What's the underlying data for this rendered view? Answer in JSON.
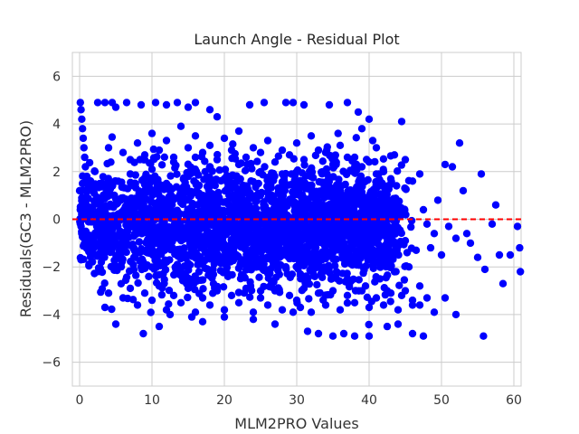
{
  "chart_data": {
    "type": "scatter",
    "title": "Launch Angle - Residual Plot",
    "xlabel": "MLM2PRO Values",
    "ylabel": "Residuals(GC3 - MLM2PRO)",
    "xlim": [
      -1,
      61
    ],
    "ylim": [
      -7,
      7
    ],
    "xticks": [
      0,
      10,
      20,
      30,
      40,
      50,
      60
    ],
    "yticks": [
      -6,
      -4,
      -2,
      0,
      2,
      4,
      6
    ],
    "grid": true,
    "point_color": "#0000ff",
    "reference_line": {
      "y": 0,
      "color": "#ff0000",
      "style": "dashed"
    },
    "series": [
      {
        "points": [
          [
            0.0,
            1.2
          ],
          [
            0.1,
            0.4
          ],
          [
            0.2,
            -0.3
          ],
          [
            0.3,
            0.9
          ],
          [
            0.4,
            1.5
          ],
          [
            0.5,
            0.2
          ],
          [
            0.3,
            -0.6
          ],
          [
            0.1,
            4.9
          ],
          [
            0.2,
            4.6
          ],
          [
            0.3,
            4.2
          ],
          [
            0.4,
            3.8
          ],
          [
            0.5,
            3.4
          ],
          [
            0.6,
            3.0
          ],
          [
            0.7,
            2.6
          ],
          [
            0.8,
            2.2
          ],
          [
            1.0,
            1.8
          ],
          [
            1.5,
            -0.8
          ],
          [
            2.0,
            -1.2
          ],
          [
            2.5,
            -1.5
          ],
          [
            3.0,
            -1.8
          ],
          [
            2.5,
            4.9
          ],
          [
            3.5,
            4.9
          ],
          [
            4.5,
            4.9
          ],
          [
            5.0,
            4.7
          ],
          [
            6.5,
            4.9
          ],
          [
            8.5,
            4.8
          ],
          [
            10.5,
            4.9
          ],
          [
            12.0,
            4.8
          ],
          [
            13.5,
            4.9
          ],
          [
            15.0,
            4.7
          ],
          [
            16.0,
            4.9
          ],
          [
            18.0,
            4.6
          ],
          [
            19.0,
            4.3
          ],
          [
            23.5,
            4.8
          ],
          [
            25.5,
            4.9
          ],
          [
            28.5,
            4.9
          ],
          [
            29.5,
            4.9
          ],
          [
            31.0,
            4.8
          ],
          [
            34.5,
            4.8
          ],
          [
            37.0,
            4.9
          ],
          [
            38.5,
            4.5
          ],
          [
            39.0,
            3.8
          ],
          [
            40.0,
            4.2
          ],
          [
            40.5,
            3.3
          ],
          [
            41.0,
            3.0
          ],
          [
            44.5,
            4.1
          ],
          [
            43.5,
            2.7
          ],
          [
            45.0,
            2.5
          ],
          [
            46.0,
            1.6
          ],
          [
            47.0,
            1.9
          ],
          [
            47.5,
            0.4
          ],
          [
            48.0,
            -0.2
          ],
          [
            48.5,
            -1.2
          ],
          [
            49.0,
            -0.6
          ],
          [
            49.5,
            0.8
          ],
          [
            50.0,
            -1.5
          ],
          [
            50.5,
            2.3
          ],
          [
            51.0,
            -0.3
          ],
          [
            51.5,
            2.2
          ],
          [
            52.0,
            -0.8
          ],
          [
            52.5,
            3.2
          ],
          [
            53.0,
            1.2
          ],
          [
            53.5,
            -0.6
          ],
          [
            54.0,
            -1.0
          ],
          [
            55.0,
            -1.6
          ],
          [
            55.5,
            1.9
          ],
          [
            56.0,
            -2.1
          ],
          [
            57.0,
            -0.2
          ],
          [
            57.5,
            0.6
          ],
          [
            58.0,
            -1.5
          ],
          [
            58.5,
            -2.7
          ],
          [
            59.5,
            -1.5
          ],
          [
            60.5,
            -0.3
          ],
          [
            60.8,
            -1.2
          ],
          [
            60.9,
            -2.2
          ],
          [
            55.8,
            -4.9
          ],
          [
            52.0,
            -4.0
          ],
          [
            50.5,
            -3.3
          ],
          [
            49.0,
            -3.9
          ],
          [
            47.5,
            -4.9
          ],
          [
            46.0,
            -4.8
          ],
          [
            44.0,
            -4.4
          ],
          [
            42.5,
            -4.5
          ],
          [
            40.0,
            -4.9
          ],
          [
            38.0,
            -4.9
          ],
          [
            36.5,
            -4.8
          ],
          [
            35.0,
            -4.9
          ],
          [
            33.0,
            -4.8
          ],
          [
            31.5,
            -4.7
          ],
          [
            8.8,
            -4.8
          ],
          [
            5.0,
            -4.4
          ],
          [
            3.5,
            -3.7
          ],
          [
            12.5,
            -4.0
          ],
          [
            15.5,
            -4.1
          ],
          [
            17.0,
            -4.3
          ],
          [
            20.0,
            -4.1
          ],
          [
            24.0,
            -4.2
          ],
          [
            27.0,
            -4.4
          ],
          [
            29.5,
            -3.9
          ],
          [
            11.0,
            -4.5
          ],
          [
            1.5,
            0.5
          ],
          [
            2.0,
            1.1
          ],
          [
            2.5,
            -0.4
          ],
          [
            3.0,
            0.8
          ],
          [
            3.5,
            -1.1
          ],
          [
            4.0,
            1.3
          ],
          [
            4.5,
            -0.7
          ],
          [
            5.0,
            1.6
          ],
          [
            5.5,
            -1.3
          ],
          [
            6.0,
            0.9
          ],
          [
            6.5,
            -0.5
          ],
          [
            7.0,
            1.9
          ],
          [
            7.5,
            -1.6
          ],
          [
            8.0,
            0.6
          ],
          [
            8.5,
            -2.0
          ],
          [
            9.0,
            1.2
          ],
          [
            9.5,
            -0.9
          ],
          [
            10.0,
            2.1
          ],
          [
            10.5,
            -1.7
          ],
          [
            11.0,
            0.3
          ],
          [
            11.5,
            -2.3
          ],
          [
            12.0,
            1.5
          ],
          [
            12.5,
            -0.8
          ],
          [
            13.0,
            2.4
          ],
          [
            13.5,
            -1.9
          ],
          [
            14.0,
            0.7
          ],
          [
            14.5,
            -2.5
          ],
          [
            15.0,
            1.8
          ],
          [
            15.5,
            -0.4
          ],
          [
            16.0,
            2.6
          ],
          [
            16.5,
            -2.2
          ],
          [
            17.0,
            1.0
          ],
          [
            17.5,
            -1.4
          ],
          [
            18.0,
            2.2
          ],
          [
            18.5,
            -2.7
          ],
          [
            19.0,
            0.5
          ],
          [
            19.5,
            -1.0
          ],
          [
            20.0,
            1.7
          ],
          [
            20.5,
            -2.4
          ],
          [
            21.0,
            0.9
          ],
          [
            21.5,
            -1.6
          ],
          [
            22.0,
            2.3
          ],
          [
            22.5,
            -0.6
          ],
          [
            23.0,
            1.4
          ],
          [
            23.5,
            -2.1
          ],
          [
            24.0,
            0.4
          ],
          [
            24.5,
            -1.8
          ],
          [
            25.0,
            2.0
          ],
          [
            25.5,
            -0.9
          ],
          [
            26.0,
            1.1
          ],
          [
            26.5,
            -2.6
          ],
          [
            27.0,
            0.6
          ],
          [
            27.5,
            -1.3
          ],
          [
            28.0,
            1.9
          ],
          [
            28.5,
            -2.0
          ],
          [
            29.0,
            0.8
          ],
          [
            29.5,
            -1.5
          ],
          [
            30.0,
            1.6
          ],
          [
            30.5,
            -2.3
          ],
          [
            31.0,
            0.2
          ],
          [
            31.5,
            -1.2
          ],
          [
            32.0,
            1.3
          ],
          [
            32.5,
            -2.4
          ],
          [
            33.0,
            0.7
          ],
          [
            33.5,
            -1.7
          ],
          [
            34.0,
            1.5
          ],
          [
            34.5,
            -0.8
          ],
          [
            35.0,
            0.9
          ],
          [
            35.5,
            -2.2
          ],
          [
            36.0,
            1.2
          ],
          [
            36.5,
            -1.4
          ],
          [
            37.0,
            0.4
          ],
          [
            37.5,
            -2.6
          ],
          [
            38.0,
            1.0
          ],
          [
            38.5,
            -1.9
          ],
          [
            39.0,
            0.6
          ],
          [
            39.5,
            -2.8
          ],
          [
            40.0,
            0.8
          ],
          [
            40.5,
            -1.6
          ],
          [
            41.0,
            0.3
          ],
          [
            41.5,
            -2.5
          ],
          [
            42.0,
            0.5
          ],
          [
            42.5,
            -3.0
          ],
          [
            43.0,
            -0.4
          ],
          [
            43.5,
            -2.2
          ],
          [
            44.0,
            0.2
          ],
          [
            44.5,
            -3.2
          ],
          [
            45.0,
            -0.9
          ],
          [
            45.5,
            -2.0
          ],
          [
            46.0,
            -3.4
          ],
          [
            46.5,
            -1.3
          ],
          [
            47.0,
            -2.8
          ],
          [
            4.0,
            3.0
          ],
          [
            6.0,
            2.8
          ],
          [
            8.0,
            3.2
          ],
          [
            10.0,
            3.6
          ],
          [
            12.0,
            3.3
          ],
          [
            14.0,
            3.9
          ],
          [
            16.0,
            3.5
          ],
          [
            18.0,
            3.1
          ],
          [
            20.0,
            3.4
          ],
          [
            22.0,
            3.7
          ],
          [
            24.0,
            3.0
          ],
          [
            26.0,
            3.3
          ],
          [
            28.0,
            2.9
          ],
          [
            30.0,
            3.2
          ],
          [
            32.0,
            3.5
          ],
          [
            34.0,
            2.8
          ],
          [
            36.0,
            3.1
          ],
          [
            38.0,
            2.6
          ],
          [
            40.0,
            2.4
          ],
          [
            42.0,
            2.0
          ],
          [
            4.0,
            -3.1
          ],
          [
            6.0,
            -3.3
          ],
          [
            8.0,
            -3.6
          ],
          [
            10.0,
            -3.4
          ],
          [
            12.0,
            -3.8
          ],
          [
            14.0,
            -3.5
          ],
          [
            16.0,
            -3.9
          ],
          [
            18.0,
            -3.6
          ],
          [
            20.0,
            -3.8
          ],
          [
            22.0,
            -3.5
          ],
          [
            24.0,
            -3.9
          ],
          [
            26.0,
            -3.6
          ],
          [
            28.0,
            -3.8
          ],
          [
            30.0,
            -3.4
          ],
          [
            32.0,
            -3.9
          ],
          [
            34.0,
            -3.6
          ],
          [
            36.0,
            -3.8
          ],
          [
            38.0,
            -3.5
          ],
          [
            40.0,
            -3.7
          ],
          [
            42.0,
            -3.6
          ],
          [
            44.0,
            -3.8
          ],
          [
            46.0,
            -3.6
          ],
          [
            48.0,
            -3.3
          ],
          [
            7.0,
            2.5
          ],
          [
            9.0,
            2.7
          ],
          [
            11.0,
            2.9
          ],
          [
            13.0,
            2.6
          ],
          [
            15.0,
            3.0
          ],
          [
            17.0,
            2.8
          ],
          [
            19.0,
            2.5
          ],
          [
            21.0,
            2.9
          ],
          [
            23.0,
            2.6
          ],
          [
            25.0,
            2.8
          ],
          [
            27.0,
            2.4
          ],
          [
            29.0,
            2.7
          ],
          [
            31.0,
            2.5
          ],
          [
            33.0,
            2.9
          ],
          [
            35.0,
            2.3
          ],
          [
            37.0,
            2.6
          ],
          [
            39.0,
            2.2
          ],
          [
            41.0,
            1.9
          ],
          [
            43.0,
            1.7
          ],
          [
            7.0,
            -2.9
          ],
          [
            9.0,
            -3.1
          ],
          [
            11.0,
            -2.8
          ],
          [
            13.0,
            -3.2
          ],
          [
            15.0,
            -2.9
          ],
          [
            17.0,
            -3.3
          ],
          [
            19.0,
            -3.0
          ],
          [
            21.0,
            -3.2
          ],
          [
            23.0,
            -2.9
          ],
          [
            25.0,
            -3.3
          ],
          [
            27.0,
            -3.0
          ],
          [
            29.0,
            -3.2
          ],
          [
            31.0,
            -2.9
          ],
          [
            33.0,
            -3.1
          ],
          [
            35.0,
            -3.0
          ],
          [
            37.0,
            -3.2
          ],
          [
            39.0,
            -3.0
          ],
          [
            41.0,
            -3.3
          ],
          [
            43.0,
            -3.1
          ],
          [
            45.0,
            -3.0
          ],
          [
            47.0,
            -3.6
          ]
        ]
      }
    ]
  }
}
